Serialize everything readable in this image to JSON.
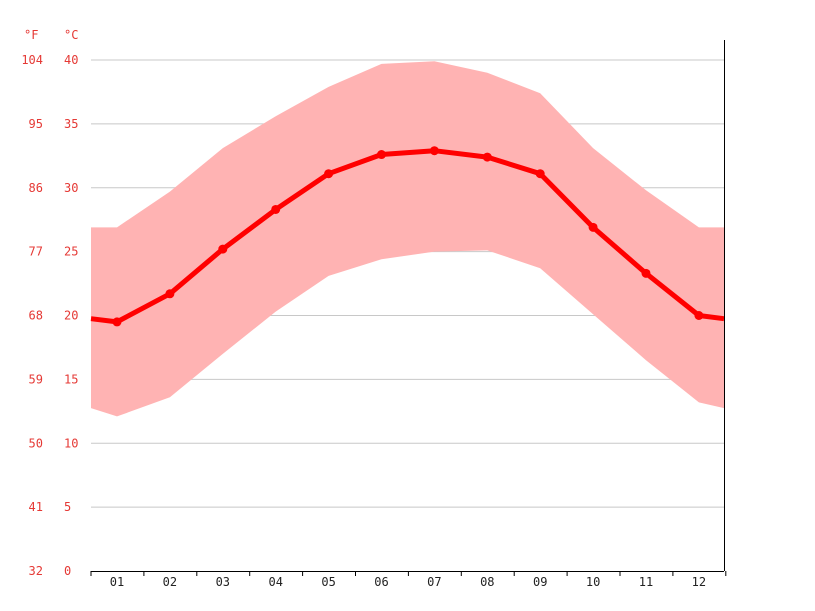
{
  "chart_data": {
    "type": "line",
    "unit_labels": {
      "fahrenheit": "°F",
      "celsius": "°C"
    },
    "y_ticks_c": [
      0,
      5,
      10,
      15,
      20,
      25,
      30,
      35,
      40
    ],
    "y_ticks_f": [
      32,
      41,
      50,
      59,
      68,
      77,
      86,
      95,
      104
    ],
    "ylim": [
      0,
      40
    ],
    "categories": [
      "01",
      "02",
      "03",
      "04",
      "05",
      "06",
      "07",
      "08",
      "09",
      "10",
      "11",
      "12"
    ],
    "series": [
      {
        "values": [
          19.5,
          21.7,
          25.2,
          28.3,
          31.1,
          32.6,
          32.9,
          32.4,
          31.1,
          26.9,
          23.3,
          20.0
        ]
      }
    ],
    "range": {
      "min": [
        12.1,
        13.6,
        17.0,
        20.3,
        23.1,
        24.4,
        25.0,
        25.1,
        23.7,
        20.1,
        16.5,
        13.2
      ],
      "max": [
        26.9,
        29.7,
        33.1,
        35.6,
        37.9,
        39.7,
        39.9,
        39.0,
        37.4,
        33.1,
        29.8,
        26.9
      ]
    },
    "grid": true,
    "colors": {
      "line": "#ff0000",
      "band": "#ffb3b3",
      "text": "#e53935"
    }
  }
}
